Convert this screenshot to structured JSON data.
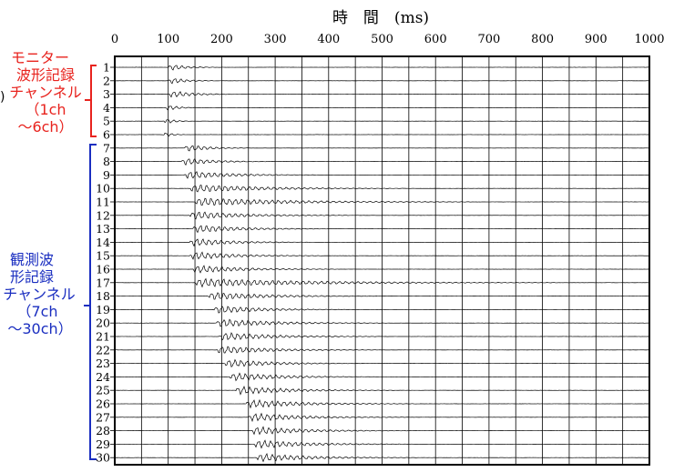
{
  "chart_data": {
    "type": "line",
    "title": "時　間　(ms)",
    "xlabel": "時　間　(ms)",
    "ylabel": "",
    "xlim": [
      0,
      1000
    ],
    "x_ticks": [
      0,
      100,
      200,
      300,
      400,
      500,
      600,
      700,
      800,
      900,
      1000
    ],
    "grid": "vertical lines every 50 ms; horizontal baseline per channel",
    "channels": [
      1,
      2,
      3,
      4,
      5,
      6,
      7,
      8,
      9,
      10,
      11,
      12,
      13,
      14,
      15,
      16,
      17,
      18,
      19,
      20,
      21,
      22,
      23,
      24,
      25,
      26,
      27,
      28,
      29,
      30
    ],
    "first_arrival_ms": [
      100,
      100,
      100,
      95,
      92,
      90,
      130,
      125,
      130,
      140,
      150,
      140,
      145,
      140,
      140,
      145,
      150,
      175,
      185,
      190,
      195,
      190,
      205,
      215,
      225,
      245,
      250,
      255,
      260,
      265
    ],
    "signal_duration_ms": [
      90,
      90,
      130,
      60,
      50,
      40,
      120,
      160,
      250,
      400,
      520,
      300,
      260,
      230,
      250,
      270,
      680,
      320,
      260,
      320,
      300,
      300,
      260,
      280,
      300,
      320,
      300,
      300,
      300,
      300
    ]
  },
  "annotations": {
    "monitor": {
      "lines": [
        "モニター",
        "波形記録",
        "チャンネル",
        "（1ch",
        "～6ch）"
      ],
      "color": "#e8231e"
    },
    "observed": {
      "lines": [
        "観測波",
        "形記録",
        "チャンネル",
        "（7ch",
        "～30ch）"
      ],
      "color": "#1a2ec0"
    },
    "stray_mark": ")"
  }
}
